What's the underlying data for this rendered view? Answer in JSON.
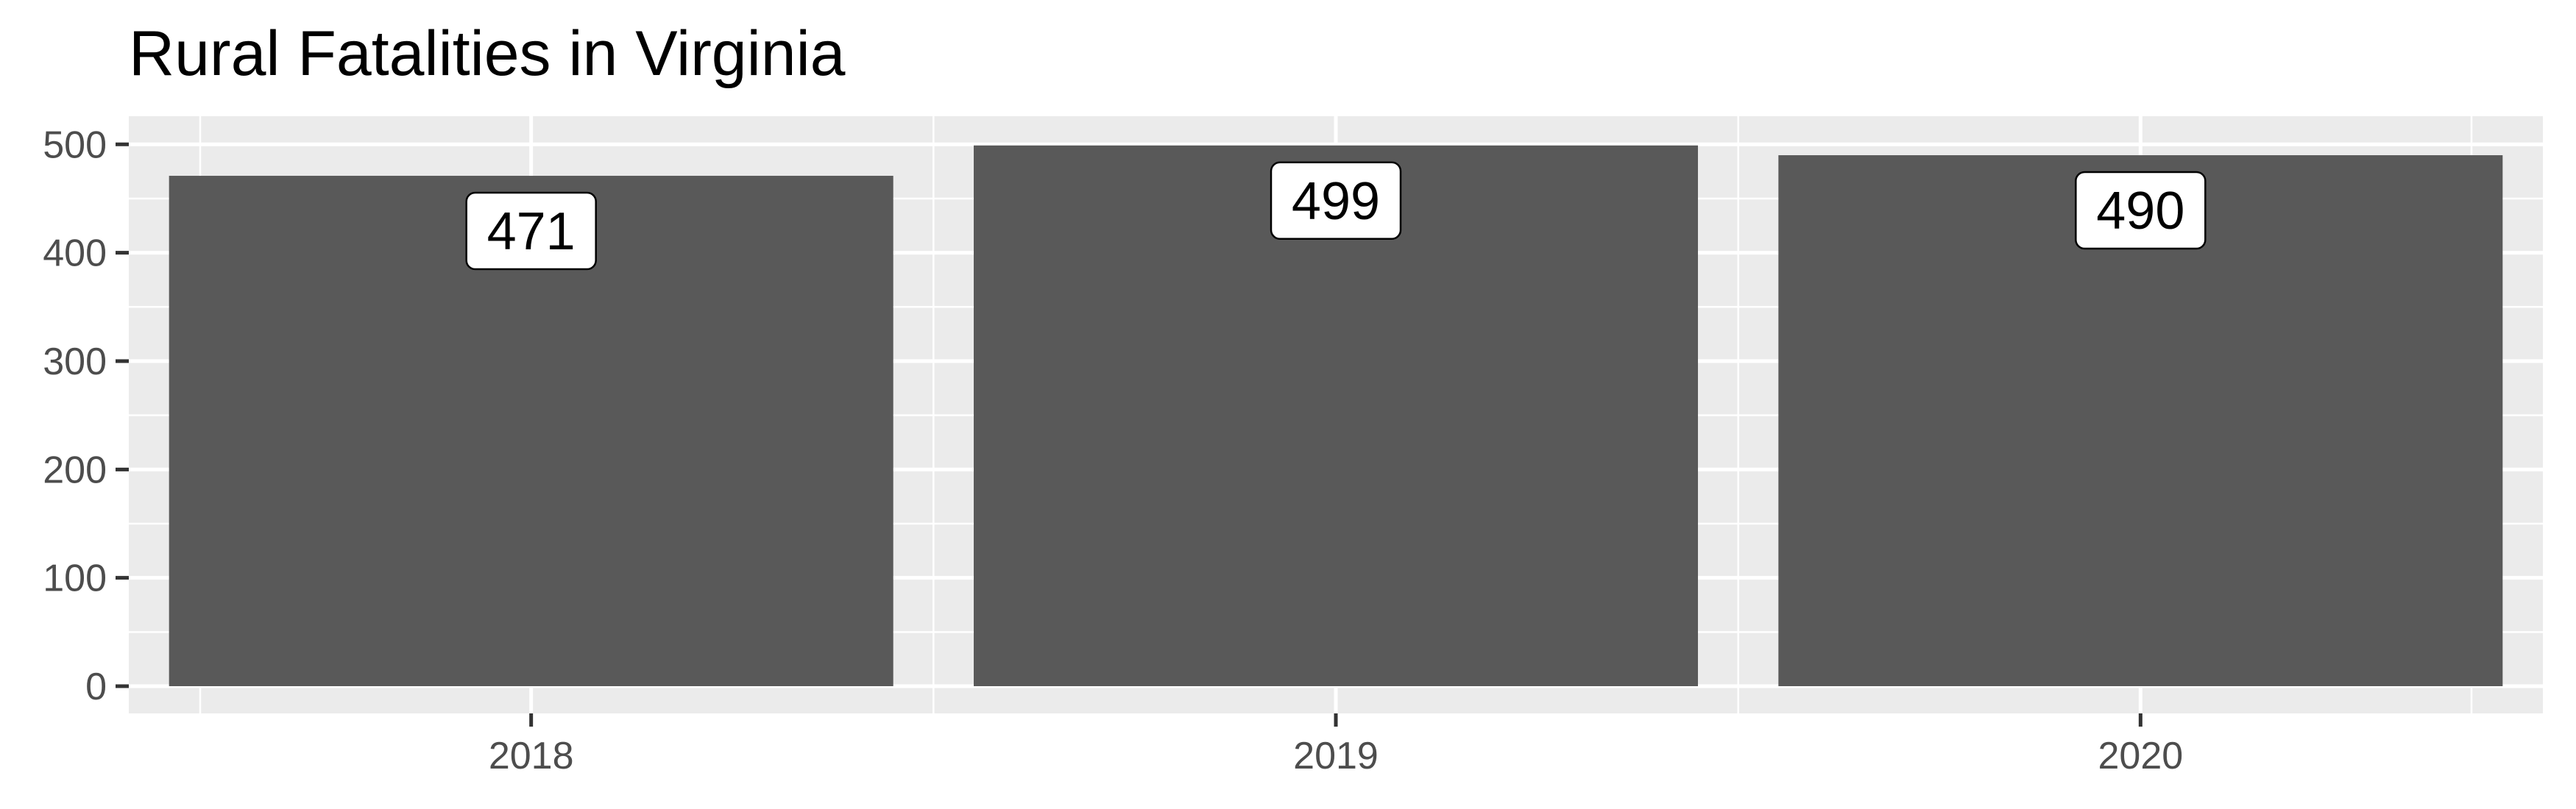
{
  "chart_data": {
    "type": "bar",
    "title": "Rural Fatalities in Virginia",
    "xlabel": "",
    "ylabel": "",
    "categories": [
      "2018",
      "2019",
      "2020"
    ],
    "values": [
      471,
      499,
      490
    ],
    "data_labels": [
      "471",
      "499",
      "490"
    ],
    "ylim": [
      0,
      525
    ],
    "y_ticks": [
      0,
      100,
      200,
      300,
      400,
      500
    ],
    "y_tick_labels": [
      "0",
      "100",
      "200",
      "300",
      "400",
      "500"
    ],
    "grid": true,
    "legend": "none",
    "colors": {
      "bar": "#595959",
      "panel_background": "#ebebeb",
      "grid": "#ffffff",
      "label_fill": "#ffffff",
      "label_border": "#000000",
      "tick": "#333333"
    }
  }
}
